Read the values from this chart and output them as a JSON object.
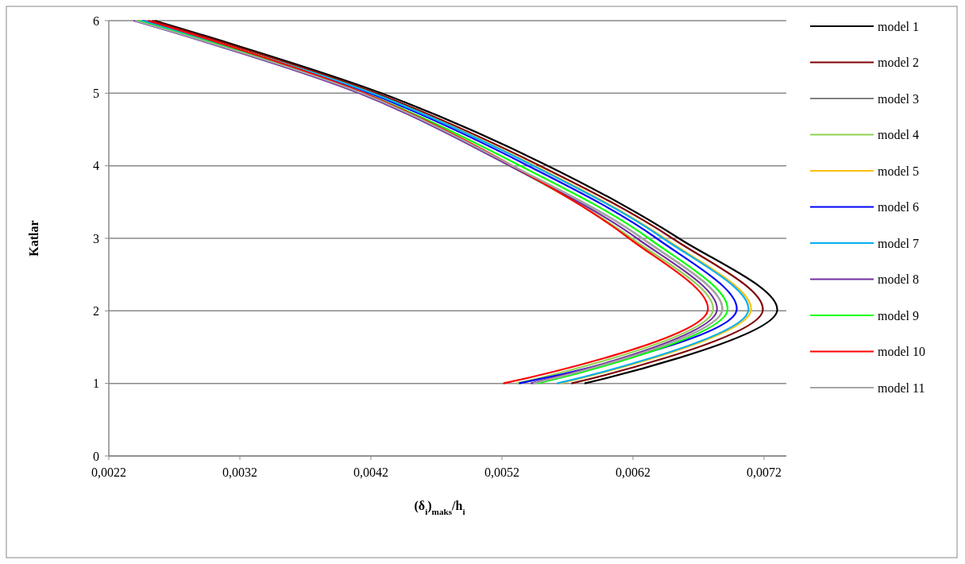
{
  "chart_data": {
    "type": "line",
    "xlabel": "(δ$_{i}$)$_{maks}$/h$_{i}$",
    "ylabel": "Katlar",
    "xlim": [
      0.0022,
      0.00737
    ],
    "xticks": [
      {
        "value": 0.0022,
        "label": "0,0022"
      },
      {
        "value": 0.0032,
        "label": "0,0032"
      },
      {
        "value": 0.0042,
        "label": "0,0042"
      },
      {
        "value": 0.0052,
        "label": "0,0052"
      },
      {
        "value": 0.0062,
        "label": "0,0062"
      },
      {
        "value": 0.0072,
        "label": "0,0072"
      }
    ],
    "ylim": [
      0,
      6
    ],
    "yticks": [
      0,
      1,
      2,
      3,
      4,
      5,
      6
    ],
    "grid": "y",
    "legend": "right",
    "marker": "none",
    "line_style": "solid",
    "series": [
      {
        "name": "model 1",
        "color": "#000000",
        "x": [
          0.00583,
          0.0073,
          0.00655,
          0.00555,
          0.00428,
          0.00255
        ],
        "values": [
          1,
          2,
          3,
          4,
          5,
          6
        ]
      },
      {
        "name": "model 2",
        "color": "#800000",
        "x": [
          0.00573,
          0.00719,
          0.0065,
          0.00549,
          0.00424,
          0.00253
        ],
        "values": [
          1,
          2,
          3,
          4,
          5,
          6
        ]
      },
      {
        "name": "model 3",
        "color": "#808080",
        "x": [
          0.00544,
          0.00688,
          0.00627,
          0.00528,
          0.00413,
          0.0024
        ],
        "values": [
          1,
          2,
          3,
          4,
          5,
          6
        ]
      },
      {
        "name": "model 4",
        "color": "#92d050",
        "x": [
          0.00531,
          0.00681,
          0.00619,
          0.00526,
          0.00412,
          0.0024
        ],
        "values": [
          1,
          2,
          3,
          4,
          5,
          6
        ]
      },
      {
        "name": "model 5",
        "color": "#ffc000",
        "x": [
          0.00564,
          0.0071,
          0.00644,
          0.00545,
          0.00421,
          0.00246
        ],
        "values": [
          1,
          2,
          3,
          4,
          5,
          6
        ]
      },
      {
        "name": "model 6",
        "color": "#0000ff",
        "x": [
          0.00533,
          0.00699,
          0.00638,
          0.0054,
          0.00419,
          0.00246
        ],
        "values": [
          1,
          2,
          3,
          4,
          5,
          6
        ]
      },
      {
        "name": "model 7",
        "color": "#00b0f0",
        "x": [
          0.00562,
          0.00708,
          0.00643,
          0.00544,
          0.00421,
          0.00245
        ],
        "values": [
          1,
          2,
          3,
          4,
          5,
          6
        ]
      },
      {
        "name": "model 8",
        "color": "#7030a0",
        "x": [
          0.00542,
          0.00684,
          0.00623,
          0.00526,
          0.00411,
          0.00239
        ],
        "values": [
          1,
          2,
          3,
          4,
          5,
          6
        ]
      },
      {
        "name": "model 9",
        "color": "#00ff00",
        "x": [
          0.00547,
          0.00692,
          0.00632,
          0.00534,
          0.00415,
          0.00242
        ],
        "values": [
          1,
          2,
          3,
          4,
          5,
          6
        ]
      },
      {
        "name": "model 10",
        "color": "#ff0000",
        "x": [
          0.00521,
          0.00677,
          0.00617,
          0.00528,
          0.00415,
          0.0025
        ],
        "values": [
          1,
          2,
          3,
          4,
          5,
          6
        ]
      },
      {
        "name": "model 11",
        "color": "#a6a6a6",
        "x": [
          0.00544,
          0.00688,
          0.00627,
          0.00528,
          0.00413,
          0.0024
        ],
        "values": [
          1,
          2,
          3,
          4,
          5,
          6
        ]
      }
    ]
  }
}
